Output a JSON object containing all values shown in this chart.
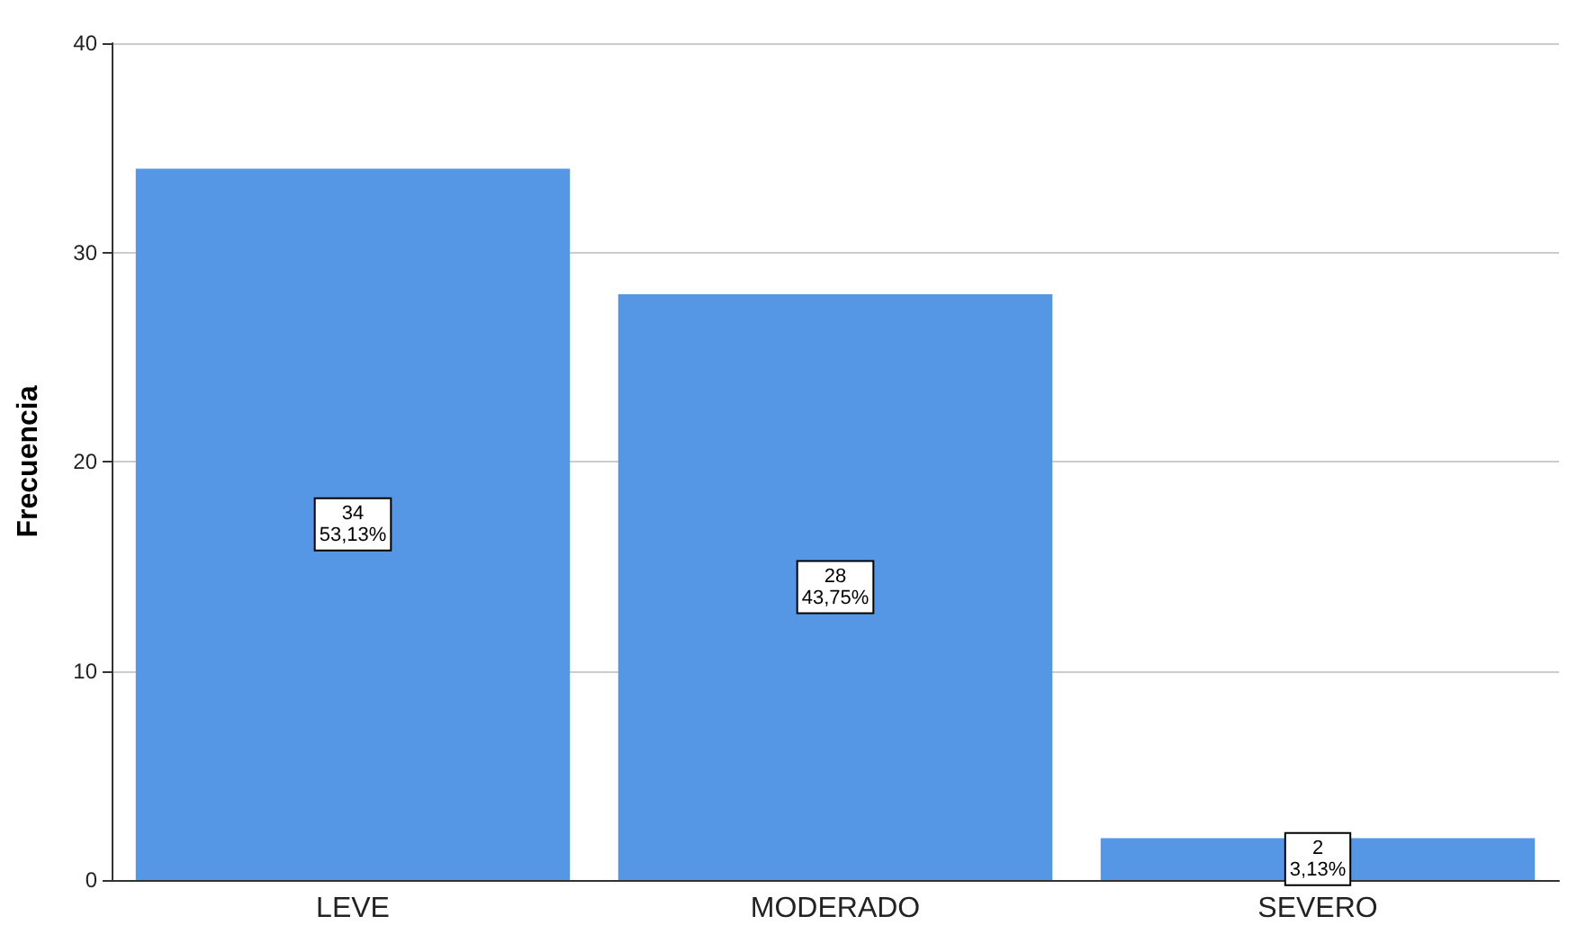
{
  "chart_data": {
    "type": "bar",
    "ylabel": "Frecuencia",
    "categories": [
      "LEVE",
      "MODERADO",
      "SEVERO"
    ],
    "values": [
      34,
      28,
      2
    ],
    "color": "#5596e5",
    "value_labels": [
      "34\n53,13%",
      "28\n43,75%",
      "2\n3,13%"
    ],
    "ylim": [
      0,
      40
    ],
    "yticks": [
      0,
      10,
      20,
      30,
      40
    ],
    "grid": "y"
  }
}
